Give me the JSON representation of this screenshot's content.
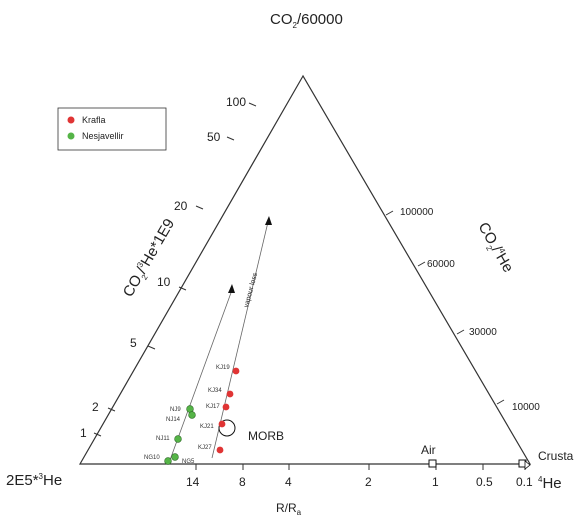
{
  "chart_data": {
    "type": "scatter",
    "subtype": "ternary",
    "apex_labels": {
      "top": {
        "main": "CO",
        "sub": "2",
        "rest": "/60000"
      },
      "left": {
        "pre": "2E5*",
        "sup": "3",
        "rest": "He"
      },
      "right": {
        "sup": "4",
        "rest": "He"
      }
    },
    "left_axis_title": {
      "a": "CO",
      "sub1": "2",
      "b": "/",
      "sup": "3",
      "c": "He*1E9"
    },
    "right_axis_title": {
      "a": "CO",
      "sub1": "2",
      "b": "/",
      "sup": "4",
      "c": "He"
    },
    "bottom_axis_title": {
      "a": "R/R",
      "sub": "a"
    },
    "left_ticks": [
      "100",
      "50",
      "20",
      "10",
      "5",
      "2",
      "1"
    ],
    "right_ticks": [
      "100000",
      "60000",
      "30000",
      "10000"
    ],
    "bottom_ticks": [
      "14",
      "8",
      "4",
      "2",
      "1",
      "0.5",
      "0.1"
    ],
    "reference_points": {
      "morb": "MORB",
      "air": "Air",
      "crusta": "Crusta"
    },
    "annotation_vapour": "vapour loss",
    "legend": {
      "placement": "top-left",
      "entries": [
        {
          "label": "Krafla",
          "color": "#e03434"
        },
        {
          "label": "Nesjavellir",
          "color": "#55b447"
        }
      ]
    },
    "series": [
      {
        "name": "Krafla",
        "color": "#e03434",
        "points": [
          {
            "label": "KJ19",
            "r_ra": 7.6,
            "co2_3he": 4.3
          },
          {
            "label": "KJ34",
            "r_ra": 7.8,
            "co2_3he": 3.0
          },
          {
            "label": "KJ17",
            "r_ra": 7.9,
            "co2_3he": 2.2
          },
          {
            "label": "KJ21",
            "r_ra": 8.2,
            "co2_3he": 1.5
          },
          {
            "label": "KJ27",
            "r_ra": 8.3,
            "co2_3he": 0.6
          }
        ]
      },
      {
        "name": "Nesjavellir",
        "color": "#55b447",
        "points": [
          {
            "label": "NJ9",
            "r_ra": 13.6,
            "co2_3he": 2.0
          },
          {
            "label": "NJ14",
            "r_ra": 13.4,
            "co2_3he": 1.8
          },
          {
            "label": "NJ11",
            "r_ra": 14.1,
            "co2_3he": 0.9
          },
          {
            "label": "NG5",
            "r_ra": 14.4,
            "co2_3he": 0.25
          },
          {
            "label": "NG10",
            "r_ra": 14.6,
            "co2_3he": 0.1
          }
        ]
      }
    ]
  }
}
